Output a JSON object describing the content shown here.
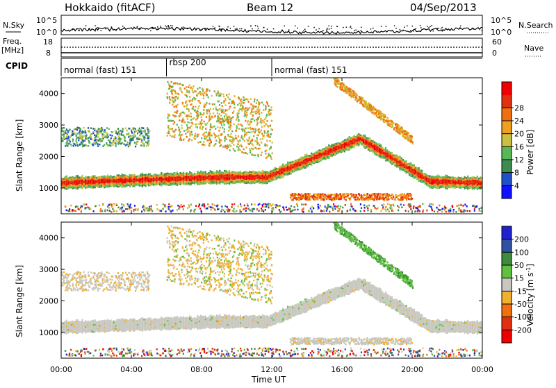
{
  "header": {
    "title_left": "Hokkaido (fitACF)",
    "title_center": "Beam 12",
    "title_right": "04/Sep/2013"
  },
  "nsky_panel": {
    "label_left": "N.Sky",
    "label_right": "N.Search",
    "yticks_left": [
      "10^5",
      "10^0"
    ],
    "yticks_right": [
      "10^5",
      "10^0"
    ]
  },
  "freq_panel": {
    "label_left_1": "Freq.",
    "label_left_2": "[MHz]",
    "label_right": "Nave",
    "yticks_left": [
      "18",
      "8"
    ],
    "yticks_right": [
      "60",
      "0"
    ]
  },
  "cpid": {
    "label": "CPID",
    "segments": [
      {
        "text": "normal (fast) 151",
        "start_h": 0,
        "end_h": 6
      },
      {
        "text": "rbsp 200",
        "start_h": 6,
        "end_h": 12
      },
      {
        "text": "normal (fast) 151",
        "start_h": 12,
        "end_h": 24
      }
    ]
  },
  "chart_data": [
    {
      "type": "heatmap",
      "title": "",
      "ylabel": "Slant Range [km]",
      "ylim": [
        180,
        4500
      ],
      "yticks": [
        1000,
        2000,
        3000,
        4000
      ],
      "quantity": "Power",
      "colorbar_label": "Power [dB]",
      "colorbar_ticks": [
        "4",
        "8",
        "12",
        "16",
        "20",
        "24",
        "28"
      ],
      "colorbar_colors": [
        "#1010ff",
        "#2050c8",
        "#3c8c50",
        "#58b858",
        "#c8c040",
        "#f0a020",
        "#f07010",
        "#e03010",
        "#f00000"
      ]
    },
    {
      "type": "heatmap",
      "title": "",
      "ylabel": "Slant Range [km]",
      "xlabel": "Time UT",
      "ylim": [
        180,
        4500
      ],
      "yticks": [
        1000,
        2000,
        3000,
        4000
      ],
      "x_ticks": [
        "00:00",
        "04:00",
        "08:00",
        "12:00",
        "16:00",
        "20:00",
        "00:00"
      ],
      "quantity": "Velocity",
      "colorbar_label": "Velocity [m s^-1]",
      "colorbar_ticks": [
        "200",
        "100",
        "50",
        "15",
        "-15",
        "-50",
        "-100",
        "-200"
      ],
      "colorbar_colors": [
        "#2020d0",
        "#3050a0",
        "#3c8c3c",
        "#60c040",
        "#c8c8c0",
        "#f0b030",
        "#f07010",
        "#e03010",
        "#f00000"
      ]
    }
  ]
}
